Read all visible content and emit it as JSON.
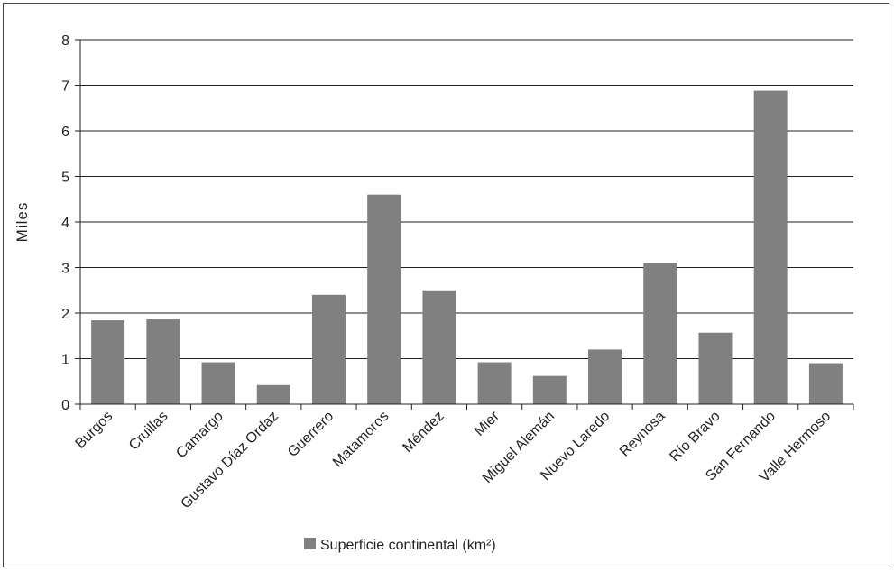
{
  "chart_data": {
    "type": "bar",
    "title": "",
    "xlabel": "",
    "ylabel": "Miles",
    "ylim": [
      0,
      8
    ],
    "yticks": [
      0,
      1,
      2,
      3,
      4,
      5,
      6,
      7,
      8
    ],
    "grid": true,
    "legend_position": "bottom",
    "bar_color": "#808080",
    "categories": [
      "Burgos",
      "Cruillas",
      "Camargo",
      "Gustavo Díaz Ordaz",
      "Guerrero",
      "Matamoros",
      "Méndez",
      "Mier",
      "Miguel Alemán",
      "Nuevo Laredo",
      "Reynosa",
      "Río Bravo",
      "San Fernando",
      "Valle Hermoso"
    ],
    "series": [
      {
        "name": "Superficie continental (km²)",
        "values": [
          1.84,
          1.86,
          0.92,
          0.42,
          2.4,
          4.6,
          2.5,
          0.92,
          0.62,
          1.2,
          3.1,
          1.57,
          6.88,
          0.9
        ]
      }
    ]
  }
}
